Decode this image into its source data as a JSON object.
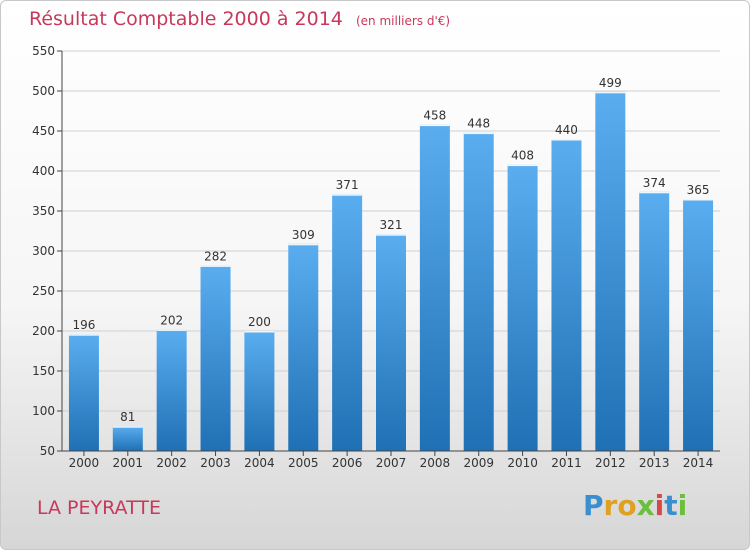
{
  "header": {
    "title": "Résultat Comptable 2000 à 2014",
    "subtitle": "(en milliers d'€)"
  },
  "footer": {
    "commune": "LA PEYRATTE",
    "logo_letters": [
      "P",
      "r",
      "o",
      "x",
      "i",
      "t",
      "i"
    ],
    "logo_text": "Proxiti"
  },
  "colors": {
    "bar_light": "#5aaef0",
    "bar_dark": "#1f70b4",
    "title": "#c8385a",
    "axis": "#444444",
    "grid": "#d0d0d0"
  },
  "chart_data": {
    "type": "bar",
    "title": "Résultat Comptable 2000 à 2014",
    "subtitle": "(en milliers d'€)",
    "categories": [
      "2000",
      "2001",
      "2002",
      "2003",
      "2004",
      "2005",
      "2006",
      "2007",
      "2008",
      "2009",
      "2010",
      "2011",
      "2012",
      "2013",
      "2014"
    ],
    "values": [
      196,
      81,
      202,
      282,
      200,
      309,
      371,
      321,
      458,
      448,
      408,
      440,
      499,
      374,
      365
    ],
    "ylim": [
      50,
      550
    ],
    "yticks": [
      50,
      100,
      150,
      200,
      250,
      300,
      350,
      400,
      450,
      500,
      550
    ],
    "grid": true,
    "xlabel": "",
    "ylabel": ""
  }
}
